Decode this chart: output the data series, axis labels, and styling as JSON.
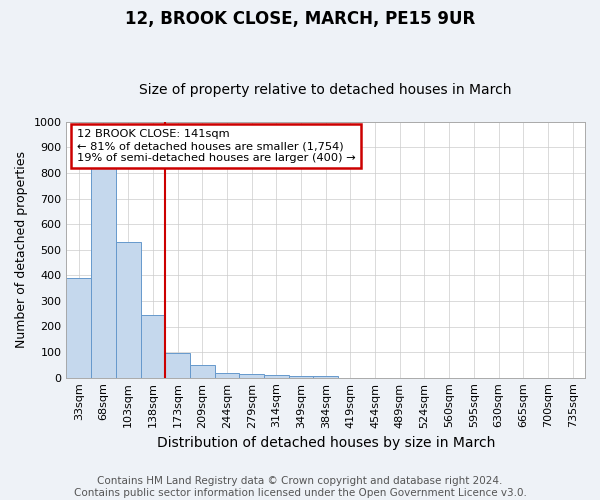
{
  "title": "12, BROOK CLOSE, MARCH, PE15 9UR",
  "subtitle": "Size of property relative to detached houses in March",
  "xlabel": "Distribution of detached houses by size in March",
  "ylabel": "Number of detached properties",
  "categories": [
    "33sqm",
    "68sqm",
    "103sqm",
    "138sqm",
    "173sqm",
    "209sqm",
    "244sqm",
    "279sqm",
    "314sqm",
    "349sqm",
    "384sqm",
    "419sqm",
    "454sqm",
    "489sqm",
    "524sqm",
    "560sqm",
    "595sqm",
    "630sqm",
    "665sqm",
    "700sqm",
    "735sqm"
  ],
  "values": [
    390,
    830,
    530,
    245,
    95,
    50,
    20,
    15,
    10,
    8,
    8,
    0,
    0,
    0,
    0,
    0,
    0,
    0,
    0,
    0,
    0
  ],
  "bar_color": "#c5d8ed",
  "bar_edge_color": "#6699cc",
  "red_line_after_index": 3,
  "annotation_line1": "12 BROOK CLOSE: 141sqm",
  "annotation_line2": "← 81% of detached houses are smaller (1,754)",
  "annotation_line3": "19% of semi-detached houses are larger (400) →",
  "annotation_box_color": "#ffffff",
  "annotation_box_edge": "#cc0000",
  "ylim": [
    0,
    1000
  ],
  "yticks": [
    0,
    100,
    200,
    300,
    400,
    500,
    600,
    700,
    800,
    900,
    1000
  ],
  "footer1": "Contains HM Land Registry data © Crown copyright and database right 2024.",
  "footer2": "Contains public sector information licensed under the Open Government Licence v3.0.",
  "bg_color": "#eef2f7",
  "plot_bg_color": "#ffffff",
  "title_fontsize": 12,
  "subtitle_fontsize": 10,
  "xlabel_fontsize": 10,
  "ylabel_fontsize": 9,
  "tick_fontsize": 8,
  "footer_fontsize": 7.5
}
